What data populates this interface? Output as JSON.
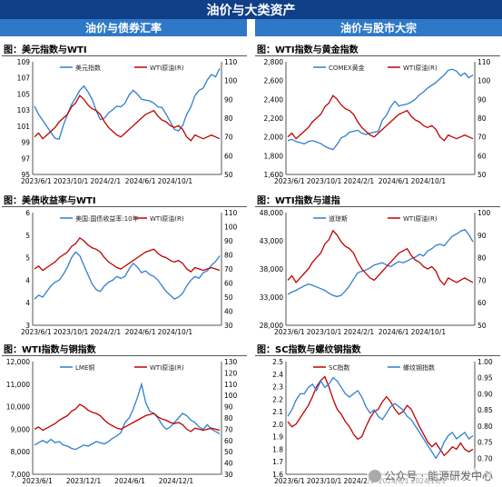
{
  "page_title": "油价与大类资产",
  "columns": [
    "油价与债券汇率",
    "油价与股市大宗"
  ],
  "watermark": "公众号 · 能源研发中心",
  "chart_data": [
    {
      "type": "line",
      "title": "图：美元指数与WTI",
      "x_ticks": [
        "2023/6/1",
        "2023/10/1",
        "2024/2/1",
        "2024/6/1",
        "2024/10/1"
      ],
      "y_left": {
        "ticks": [
          "95",
          "97",
          "99",
          "101",
          "103",
          "105",
          "107",
          "109"
        ],
        "lim": [
          95,
          110
        ]
      },
      "y_right": {
        "ticks": [
          "50",
          "60",
          "70",
          "80",
          "90",
          "100",
          "110"
        ],
        "lim": [
          50,
          110
        ]
      },
      "series": [
        {
          "name": "美元指数",
          "axis": "left",
          "color": "#2e7fd0",
          "values": [
            104.1,
            103.0,
            102.2,
            101.4,
            100.6,
            99.8,
            99.7,
            101.5,
            103.0,
            104.3,
            105.2,
            106.2,
            106.8,
            106.0,
            105.0,
            103.5,
            102.3,
            102.5,
            103.2,
            103.6,
            104.1,
            104.0,
            104.5,
            105.6,
            106.2,
            105.7,
            105.0,
            104.9,
            104.8,
            104.5,
            104.0,
            103.9,
            103.0,
            102.0,
            101.0,
            100.8,
            101.5,
            103.0,
            104.0,
            105.5,
            106.2,
            106.5,
            107.6,
            108.3,
            108.0,
            109.1
          ]
        },
        {
          "name": "WTI原油(R)",
          "axis": "right",
          "color": "#c00000",
          "values": [
            70,
            72,
            69,
            71,
            73,
            75,
            78,
            80,
            82,
            86,
            88,
            92,
            90,
            87,
            85,
            84,
            82,
            78,
            75,
            73,
            71,
            70,
            72,
            74,
            76,
            78,
            80,
            82,
            83,
            84,
            81,
            79,
            78,
            76,
            75,
            76,
            74,
            70,
            68,
            71,
            70,
            69,
            70,
            71,
            70,
            69
          ]
        }
      ]
    },
    {
      "type": "line",
      "title": "图：WTI指数与黄金指数",
      "x_ticks": [
        "2023/6/1",
        "2023/10/1",
        "2024/2/1",
        "2024/6/1",
        "2024/10/1"
      ],
      "y_left": {
        "ticks": [
          "1,600",
          "1,800",
          "2,000",
          "2,200",
          "2,400",
          "2,600",
          "2,800"
        ],
        "lim": [
          1600,
          2800
        ]
      },
      "y_right": {
        "ticks": [
          "50",
          "60",
          "70",
          "80",
          "90",
          "100",
          "110"
        ],
        "lim": [
          50,
          110
        ]
      },
      "series": [
        {
          "name": "COMEX黄金",
          "axis": "left",
          "color": "#2e7fd0",
          "values": [
            1960,
            1975,
            1950,
            1940,
            1925,
            1950,
            1960,
            1945,
            1930,
            1900,
            1880,
            1865,
            1920,
            1990,
            2010,
            2050,
            2060,
            2070,
            2040,
            2025,
            2040,
            2050,
            2060,
            2180,
            2230,
            2320,
            2380,
            2330,
            2340,
            2350,
            2370,
            2400,
            2450,
            2480,
            2520,
            2550,
            2580,
            2620,
            2660,
            2710,
            2720,
            2700,
            2650,
            2680,
            2630,
            2660
          ]
        },
        {
          "name": "WTI原油(R)",
          "axis": "right",
          "color": "#c00000",
          "values": [
            70,
            72,
            69,
            71,
            73,
            75,
            78,
            80,
            82,
            86,
            88,
            92,
            90,
            87,
            85,
            84,
            82,
            78,
            75,
            73,
            71,
            70,
            72,
            74,
            76,
            78,
            80,
            82,
            83,
            84,
            81,
            79,
            78,
            76,
            75,
            76,
            74,
            70,
            68,
            71,
            70,
            69,
            70,
            71,
            70,
            69
          ]
        }
      ]
    },
    {
      "type": "line",
      "title": "图：美债收益率与WTI",
      "x_ticks": [
        "2023/6/1",
        "2023/10/1",
        "2024/2/1",
        "2024/6/1",
        "2024/10/1"
      ],
      "y_left": {
        "ticks": [
          "3",
          "4",
          "4",
          "5",
          "5",
          "6"
        ],
        "lim": [
          3,
          6
        ]
      },
      "y_right": {
        "ticks": [
          "30",
          "40",
          "50",
          "60",
          "70",
          "80",
          "90",
          "100",
          "110"
        ],
        "lim": [
          30,
          110
        ]
      },
      "series": [
        {
          "name": "美国:国债收益率:10年",
          "axis": "left",
          "color": "#2e7fd0",
          "values": [
            3.7,
            3.8,
            3.75,
            3.9,
            4.05,
            4.15,
            4.2,
            4.35,
            4.55,
            4.8,
            4.95,
            4.85,
            4.6,
            4.35,
            4.1,
            3.95,
            3.9,
            4.05,
            4.15,
            4.2,
            4.3,
            4.25,
            4.3,
            4.5,
            4.65,
            4.55,
            4.4,
            4.45,
            4.35,
            4.3,
            4.2,
            4.05,
            3.9,
            3.8,
            3.7,
            3.75,
            3.85,
            4.05,
            4.2,
            4.3,
            4.25,
            4.4,
            4.45,
            4.6,
            4.7,
            4.85
          ]
        },
        {
          "name": "WTI原油(R)",
          "axis": "right",
          "color": "#c00000",
          "values": [
            70,
            72,
            69,
            71,
            73,
            75,
            78,
            80,
            82,
            86,
            88,
            92,
            90,
            87,
            85,
            84,
            82,
            78,
            75,
            73,
            71,
            70,
            72,
            74,
            76,
            78,
            80,
            82,
            83,
            84,
            81,
            79,
            78,
            76,
            75,
            76,
            74,
            70,
            68,
            71,
            70,
            69,
            70,
            71,
            70,
            69
          ]
        }
      ]
    },
    {
      "type": "line",
      "title": "图：WTI指数与道指",
      "x_ticks": [
        "2023/6/1",
        "2023/10/1",
        "2024/2/1",
        "2024/6/1",
        "2024/10/1"
      ],
      "y_left": {
        "ticks": [
          "28,000",
          "33,000",
          "38,000",
          "43,000",
          "48,000"
        ],
        "lim": [
          28000,
          48000
        ]
      },
      "y_right": {
        "ticks": [
          "50",
          "60",
          "70",
          "80",
          "90",
          "100"
        ],
        "lim": [
          50,
          100
        ]
      },
      "series": [
        {
          "name": "道琼斯",
          "axis": "left",
          "color": "#2e7fd0",
          "values": [
            33500,
            33900,
            34200,
            34600,
            35000,
            35300,
            35100,
            34800,
            34500,
            34200,
            33700,
            33300,
            33100,
            33300,
            34100,
            35000,
            36200,
            37300,
            37600,
            37800,
            38200,
            38700,
            38900,
            39100,
            38700,
            38400,
            38900,
            39300,
            39100,
            39400,
            39800,
            40100,
            40600,
            40300,
            41200,
            41600,
            42200,
            42400,
            42100,
            43000,
            43800,
            44200,
            44700,
            45000,
            44100,
            42800
          ]
        },
        {
          "name": "WTI原油(R)",
          "axis": "right",
          "color": "#c00000",
          "values": [
            70,
            72,
            69,
            71,
            73,
            75,
            78,
            80,
            82,
            86,
            88,
            92,
            90,
            87,
            85,
            84,
            82,
            78,
            75,
            73,
            71,
            70,
            72,
            74,
            76,
            78,
            80,
            82,
            83,
            84,
            81,
            79,
            78,
            76,
            75,
            76,
            74,
            70,
            68,
            71,
            70,
            69,
            70,
            71,
            70,
            69
          ]
        }
      ]
    },
    {
      "type": "line",
      "title": "图：WTI指数与铜指数",
      "x_ticks": [
        "2023/6/1",
        "2023/12/1",
        "2024/6/1",
        "2024/12/1"
      ],
      "y_left": {
        "ticks": [
          "7,000",
          "8,000",
          "9,000",
          "10,000",
          "11,000",
          "12,000"
        ],
        "lim": [
          7000,
          12000
        ]
      },
      "y_right": {
        "ticks": [
          "30",
          "40",
          "50",
          "60",
          "70",
          "80",
          "90",
          "100",
          "110",
          "120",
          "130"
        ],
        "lim": [
          30,
          130
        ]
      },
      "series": [
        {
          "name": "LME铜",
          "axis": "left",
          "color": "#2e7fd0",
          "values": [
            8300,
            8400,
            8500,
            8400,
            8550,
            8400,
            8450,
            8300,
            8250,
            8150,
            8100,
            8200,
            8300,
            8250,
            8350,
            8450,
            8400,
            8350,
            8450,
            8600,
            8700,
            8850,
            9300,
            9500,
            9900,
            10400,
            11000,
            10200,
            9800,
            9700,
            9500,
            9200,
            9000,
            9100,
            9300,
            9500,
            9700,
            9600,
            9400,
            9300,
            9100,
            9000,
            9200,
            9000,
            8900,
            8800
          ]
        },
        {
          "name": "WTI原油(R)",
          "axis": "right",
          "color": "#c00000",
          "values": [
            70,
            72,
            69,
            71,
            73,
            75,
            78,
            80,
            82,
            86,
            88,
            92,
            90,
            87,
            85,
            84,
            82,
            78,
            75,
            73,
            71,
            70,
            72,
            74,
            76,
            78,
            80,
            82,
            83,
            84,
            81,
            79,
            78,
            76,
            75,
            76,
            74,
            70,
            68,
            71,
            70,
            69,
            70,
            71,
            70,
            69
          ]
        }
      ]
    },
    {
      "type": "line",
      "title": "图：SC指数与螺纹钢指数",
      "x_ticks": [
        "2023/6/1",
        "2023/10/1",
        "2024/2/1",
        "2024/6/1",
        "2024/10/1"
      ],
      "y_left": {
        "ticks": [
          "1.6",
          "1.7",
          "1.8",
          "1.9",
          "2.0",
          "2.1",
          "2.2",
          "2.3",
          "2.4",
          "2.5"
        ],
        "lim": [
          1.6,
          2.5
        ]
      },
      "y_right": {
        "ticks": [
          "0.65",
          "0.70",
          "0.75",
          "0.80",
          "0.85",
          "0.90",
          "0.95",
          "1.00"
        ],
        "lim": [
          0.65,
          1.0
        ]
      },
      "series": [
        {
          "name": "SC指数",
          "axis": "left",
          "color": "#c00000",
          "values": [
            2.02,
            1.98,
            2.0,
            2.05,
            2.1,
            2.15,
            2.22,
            2.3,
            2.35,
            2.38,
            2.3,
            2.2,
            2.12,
            2.08,
            2.02,
            1.98,
            1.92,
            1.88,
            1.9,
            1.98,
            2.05,
            2.1,
            2.12,
            2.18,
            2.22,
            2.18,
            2.12,
            2.08,
            2.1,
            2.15,
            2.12,
            2.05,
            1.98,
            1.92,
            1.86,
            1.82,
            1.85,
            1.8,
            1.75,
            1.78,
            1.82,
            1.8,
            1.85,
            1.8,
            1.78,
            1.8
          ]
        },
        {
          "name": "螺纹钢指数",
          "axis": "right",
          "color": "#2e7fd0",
          "values": [
            0.83,
            0.85,
            0.88,
            0.9,
            0.9,
            0.92,
            0.93,
            0.91,
            0.94,
            0.92,
            0.93,
            0.95,
            0.94,
            0.92,
            0.9,
            0.89,
            0.9,
            0.91,
            0.89,
            0.86,
            0.84,
            0.85,
            0.83,
            0.82,
            0.84,
            0.86,
            0.87,
            0.86,
            0.85,
            0.83,
            0.82,
            0.8,
            0.78,
            0.76,
            0.74,
            0.72,
            0.7,
            0.72,
            0.75,
            0.77,
            0.78,
            0.76,
            0.77,
            0.78,
            0.76,
            0.77
          ]
        }
      ]
    }
  ]
}
